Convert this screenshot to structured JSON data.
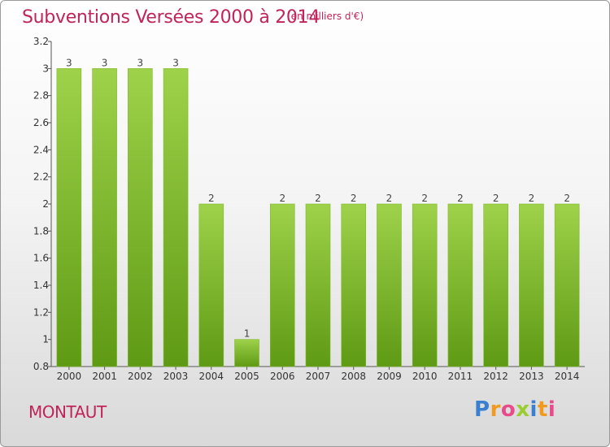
{
  "header": {
    "title": "Subventions Versées 2000 à 2014",
    "subtitle": "(en milliers d'€)"
  },
  "footer": {
    "place": "MONTAUT",
    "logo": "Proxiti",
    "logo_colors": [
      "#3a7fd0",
      "#f29a1f",
      "#e84a8a",
      "#9acd32",
      "#3a7fd0",
      "#f29a1f",
      "#e84a8a"
    ]
  },
  "chart_data": {
    "type": "bar",
    "categories": [
      "2000",
      "2001",
      "2002",
      "2003",
      "2004",
      "2005",
      "2006",
      "2007",
      "2008",
      "2009",
      "2010",
      "2011",
      "2012",
      "2013",
      "2014"
    ],
    "values": [
      3,
      3,
      3,
      3,
      2,
      1,
      2,
      2,
      2,
      2,
      2,
      2,
      2,
      2,
      2
    ],
    "data_labels": [
      "3",
      "3",
      "3",
      "3",
      "2",
      "1",
      "2",
      "2",
      "2",
      "2",
      "2",
      "2",
      "2",
      "2",
      "2"
    ],
    "ylim": [
      0.8,
      3.2
    ],
    "yticks": [
      0.8,
      1,
      1.2,
      1.4,
      1.6,
      1.8,
      2,
      2.2,
      2.4,
      2.6,
      2.8,
      3,
      3.2
    ],
    "ytick_labels": [
      "0.8",
      "1",
      "1.2",
      "1.4",
      "1.6",
      "1.8",
      "2",
      "2.2",
      "2.4",
      "2.6",
      "2.8",
      "3",
      "3.2"
    ],
    "grid": false,
    "colors": {
      "bar_top": "#9ed24a",
      "bar_bottom": "#5f9a14",
      "bar_edge": "#7fb92c"
    }
  }
}
